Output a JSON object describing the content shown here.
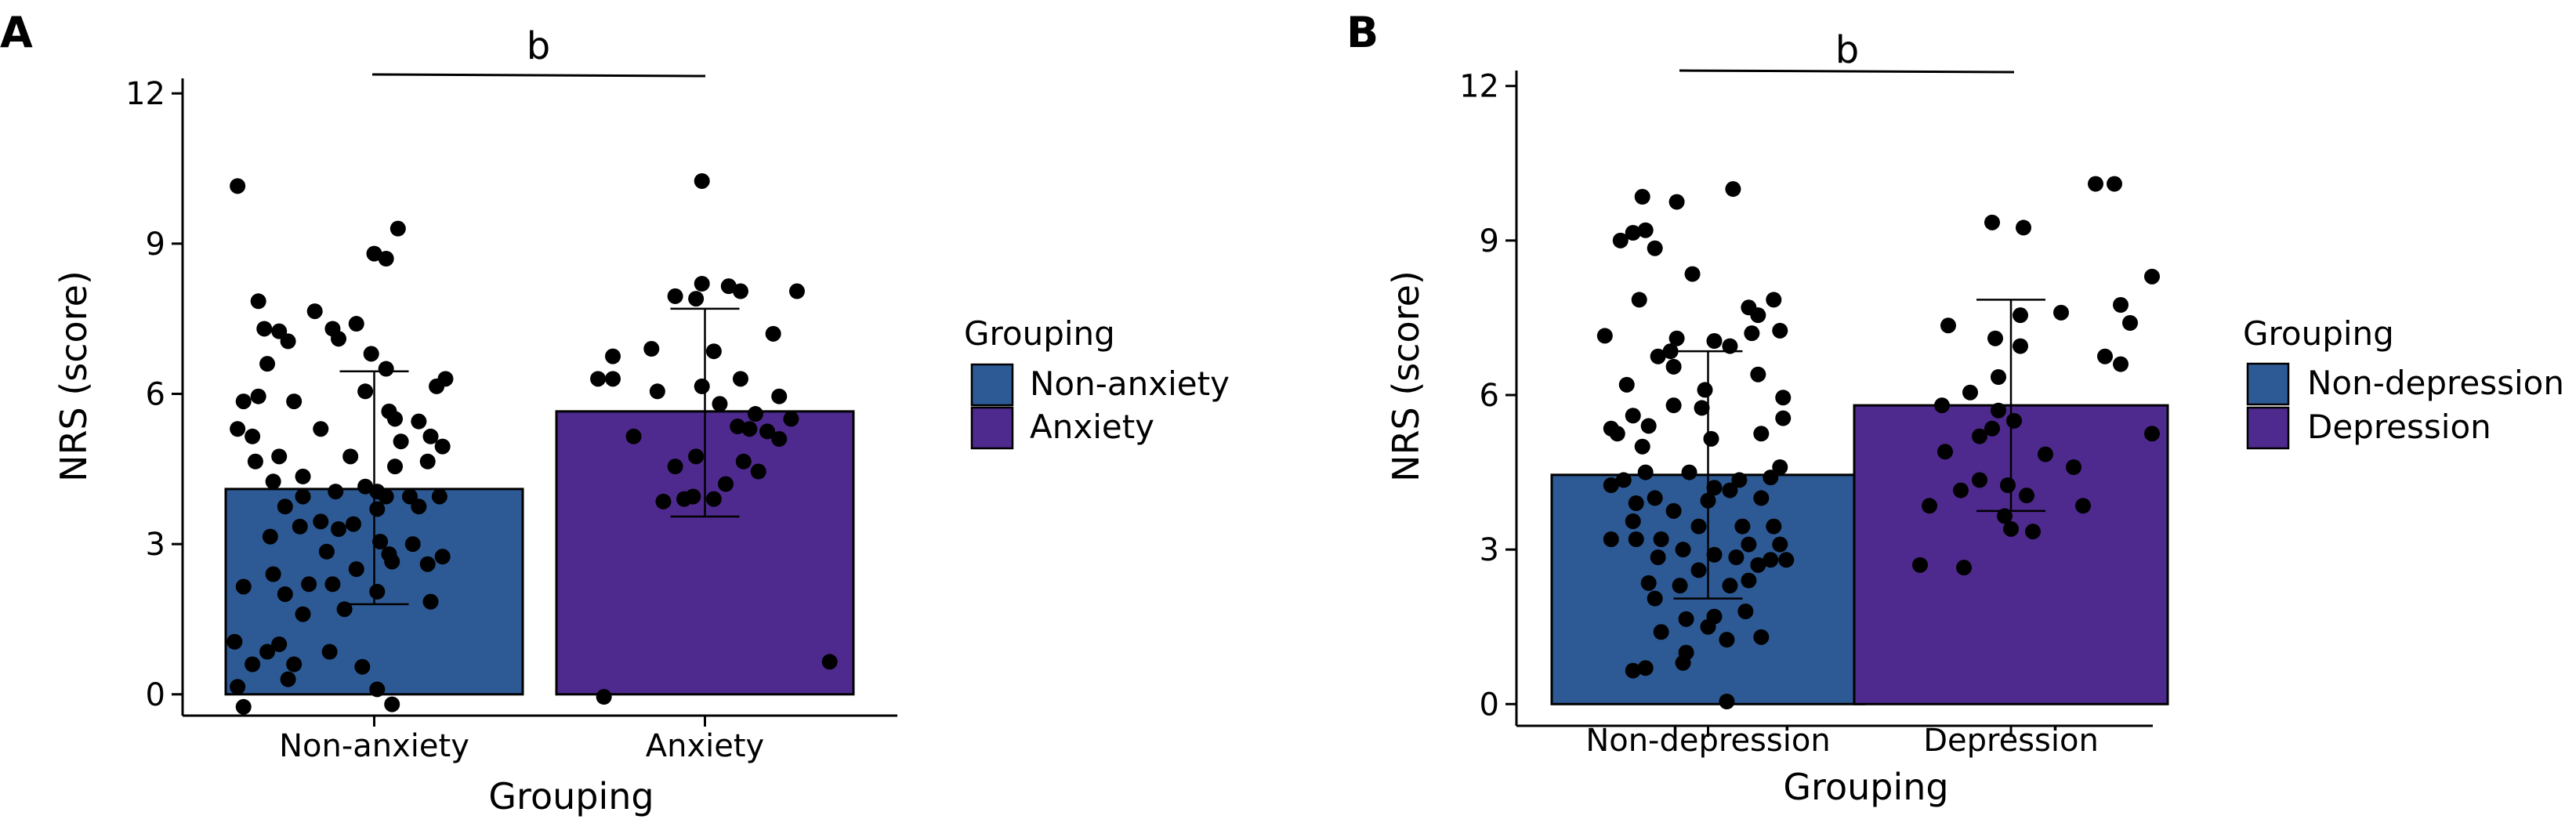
{
  "chart_data": [
    {
      "panel": "A",
      "type": "bar",
      "categories": [
        "Non-anxiety",
        "Anxiety"
      ],
      "values": [
        4.1,
        5.65
      ],
      "error": [
        [
          1.8,
          6.45
        ],
        [
          3.55,
          7.7
        ]
      ],
      "colors": [
        "#2d5a94",
        "#4f2a8e"
      ],
      "xlabel": "Grouping",
      "ylabel": "NRS (score)",
      "ylim": [
        -0.3,
        12.3
      ],
      "yticks": [
        "0",
        "3",
        "6",
        "9",
        "12"
      ],
      "ytick_values": [
        0,
        3,
        6,
        9,
        12
      ],
      "significance": "b",
      "grid": false,
      "legend": {
        "title": "Grouping",
        "placement": "right",
        "entries": [
          "Non-anxiety",
          "Anxiety"
        ]
      },
      "points": [
        [
          [
            0.04,
            10.15
          ],
          [
            0.58,
            9.3
          ],
          [
            0.5,
            8.8
          ],
          [
            0.54,
            8.7
          ],
          [
            0.11,
            7.85
          ],
          [
            0.3,
            7.65
          ],
          [
            0.44,
            7.4
          ],
          [
            0.13,
            7.3
          ],
          [
            0.18,
            7.25
          ],
          [
            0.36,
            7.3
          ],
          [
            0.38,
            7.1
          ],
          [
            0.21,
            7.05
          ],
          [
            0.49,
            6.8
          ],
          [
            0.14,
            6.6
          ],
          [
            0.54,
            6.5
          ],
          [
            0.74,
            6.3
          ],
          [
            0.71,
            6.15
          ],
          [
            0.47,
            6.05
          ],
          [
            0.11,
            5.95
          ],
          [
            0.06,
            5.85
          ],
          [
            0.23,
            5.85
          ],
          [
            0.55,
            5.65
          ],
          [
            0.57,
            5.5
          ],
          [
            0.65,
            5.45
          ],
          [
            0.04,
            5.3
          ],
          [
            0.32,
            5.3
          ],
          [
            0.09,
            5.15
          ],
          [
            0.69,
            5.15
          ],
          [
            0.59,
            5.05
          ],
          [
            0.73,
            4.95
          ],
          [
            0.18,
            4.75
          ],
          [
            0.1,
            4.65
          ],
          [
            0.42,
            4.75
          ],
          [
            0.68,
            4.65
          ],
          [
            0.57,
            4.55
          ],
          [
            0.26,
            4.35
          ],
          [
            0.16,
            4.25
          ],
          [
            0.47,
            4.15
          ],
          [
            0.51,
            4.05
          ],
          [
            0.37,
            4.05
          ],
          [
            0.54,
            3.95
          ],
          [
            0.62,
            3.95
          ],
          [
            0.72,
            3.95
          ],
          [
            0.26,
            3.95
          ],
          [
            0.65,
            3.75
          ],
          [
            0.2,
            3.75
          ],
          [
            0.51,
            3.7
          ],
          [
            0.32,
            3.45
          ],
          [
            0.43,
            3.4
          ],
          [
            0.25,
            3.35
          ],
          [
            0.38,
            3.3
          ],
          [
            0.15,
            3.15
          ],
          [
            0.52,
            3.05
          ],
          [
            0.63,
            3.0
          ],
          [
            0.34,
            2.85
          ],
          [
            0.55,
            2.8
          ],
          [
            0.73,
            2.75
          ],
          [
            0.56,
            2.65
          ],
          [
            0.68,
            2.6
          ],
          [
            0.44,
            2.5
          ],
          [
            0.16,
            2.4
          ],
          [
            0.28,
            2.2
          ],
          [
            0.36,
            2.2
          ],
          [
            0.06,
            2.15
          ],
          [
            0.51,
            2.05
          ],
          [
            0.2,
            2.0
          ],
          [
            0.69,
            1.85
          ],
          [
            0.4,
            1.7
          ],
          [
            0.26,
            1.6
          ],
          [
            0.03,
            1.05
          ],
          [
            0.18,
            1.0
          ],
          [
            0.14,
            0.85
          ],
          [
            0.35,
            0.85
          ],
          [
            0.09,
            0.6
          ],
          [
            0.23,
            0.6
          ],
          [
            0.46,
            0.55
          ],
          [
            0.21,
            0.3
          ],
          [
            0.04,
            0.15
          ],
          [
            0.51,
            0.1
          ],
          [
            0.56,
            -0.2
          ],
          [
            0.06,
            -0.25
          ]
        ],
        [
          [
            0.49,
            10.25
          ],
          [
            0.49,
            8.2
          ],
          [
            0.58,
            8.15
          ],
          [
            0.62,
            8.05
          ],
          [
            0.4,
            7.95
          ],
          [
            0.47,
            7.9
          ],
          [
            0.81,
            8.05
          ],
          [
            0.73,
            7.2
          ],
          [
            0.32,
            6.9
          ],
          [
            0.53,
            6.85
          ],
          [
            0.19,
            6.75
          ],
          [
            0.14,
            6.3
          ],
          [
            0.19,
            6.3
          ],
          [
            0.62,
            6.3
          ],
          [
            0.49,
            6.15
          ],
          [
            0.34,
            6.05
          ],
          [
            0.75,
            5.95
          ],
          [
            0.55,
            5.8
          ],
          [
            0.67,
            5.6
          ],
          [
            0.79,
            5.5
          ],
          [
            0.61,
            5.35
          ],
          [
            0.65,
            5.3
          ],
          [
            0.71,
            5.25
          ],
          [
            0.75,
            5.1
          ],
          [
            0.26,
            5.15
          ],
          [
            0.47,
            4.75
          ],
          [
            0.63,
            4.65
          ],
          [
            0.4,
            4.55
          ],
          [
            0.68,
            4.45
          ],
          [
            0.57,
            4.2
          ],
          [
            0.46,
            3.95
          ],
          [
            0.43,
            3.9
          ],
          [
            0.53,
            3.9
          ],
          [
            0.36,
            3.85
          ],
          [
            0.92,
            0.65
          ],
          [
            0.16,
            -0.05
          ]
        ]
      ]
    },
    {
      "panel": "B",
      "type": "bar",
      "categories": [
        "Non-depression",
        "Depression"
      ],
      "values": [
        4.45,
        5.8
      ],
      "error": [
        [
          2.05,
          6.85
        ],
        [
          3.75,
          7.85
        ]
      ],
      "colors": [
        "#2d5a94",
        "#4f2a8e"
      ],
      "xlabel": "Grouping",
      "ylabel": "NRS (score)",
      "ylim": [
        -0.3,
        12.3
      ],
      "yticks": [
        "0",
        "3",
        "6",
        "9",
        "12"
      ],
      "ytick_values": [
        0,
        3,
        6,
        9,
        12
      ],
      "significance": "b",
      "grid": false,
      "legend": {
        "title": "Grouping",
        "placement": "right",
        "entries": [
          "Non-depression",
          "Depression"
        ]
      },
      "points": [
        [
          [
            0.58,
            10.0
          ],
          [
            0.29,
            9.85
          ],
          [
            0.4,
            9.75
          ],
          [
            0.3,
            9.2
          ],
          [
            0.26,
            9.15
          ],
          [
            0.22,
            9.0
          ],
          [
            0.33,
            8.85
          ],
          [
            0.45,
            8.35
          ],
          [
            0.71,
            7.85
          ],
          [
            0.63,
            7.7
          ],
          [
            0.28,
            7.85
          ],
          [
            0.66,
            7.55
          ],
          [
            0.73,
            7.25
          ],
          [
            0.64,
            7.2
          ],
          [
            0.17,
            7.15
          ],
          [
            0.4,
            7.1
          ],
          [
            0.52,
            7.05
          ],
          [
            0.57,
            6.95
          ],
          [
            0.38,
            6.85
          ],
          [
            0.34,
            6.75
          ],
          [
            0.39,
            6.55
          ],
          [
            0.66,
            6.4
          ],
          [
            0.24,
            6.2
          ],
          [
            0.49,
            6.1
          ],
          [
            0.74,
            5.95
          ],
          [
            0.39,
            5.8
          ],
          [
            0.48,
            5.75
          ],
          [
            0.26,
            5.6
          ],
          [
            0.74,
            5.55
          ],
          [
            0.31,
            5.4
          ],
          [
            0.19,
            5.35
          ],
          [
            0.21,
            5.25
          ],
          [
            0.67,
            5.25
          ],
          [
            0.51,
            5.15
          ],
          [
            0.29,
            5.0
          ],
          [
            0.73,
            4.6
          ],
          [
            0.3,
            4.5
          ],
          [
            0.44,
            4.5
          ],
          [
            0.23,
            4.35
          ],
          [
            0.6,
            4.35
          ],
          [
            0.7,
            4.4
          ],
          [
            0.19,
            4.25
          ],
          [
            0.52,
            4.2
          ],
          [
            0.57,
            4.15
          ],
          [
            0.33,
            4.0
          ],
          [
            0.67,
            4.0
          ],
          [
            0.27,
            3.9
          ],
          [
            0.5,
            3.95
          ],
          [
            0.39,
            3.75
          ],
          [
            0.26,
            3.55
          ],
          [
            0.47,
            3.45
          ],
          [
            0.61,
            3.45
          ],
          [
            0.71,
            3.45
          ],
          [
            0.35,
            3.2
          ],
          [
            0.19,
            3.2
          ],
          [
            0.27,
            3.2
          ],
          [
            0.73,
            3.1
          ],
          [
            0.63,
            3.1
          ],
          [
            0.42,
            3.0
          ],
          [
            0.52,
            2.9
          ],
          [
            0.34,
            2.85
          ],
          [
            0.59,
            2.85
          ],
          [
            0.7,
            2.8
          ],
          [
            0.75,
            2.8
          ],
          [
            0.66,
            2.7
          ],
          [
            0.47,
            2.6
          ],
          [
            0.63,
            2.4
          ],
          [
            0.31,
            2.35
          ],
          [
            0.41,
            2.3
          ],
          [
            0.57,
            2.3
          ],
          [
            0.33,
            2.05
          ],
          [
            0.62,
            1.8
          ],
          [
            0.52,
            1.7
          ],
          [
            0.43,
            1.65
          ],
          [
            0.5,
            1.5
          ],
          [
            0.35,
            1.4
          ],
          [
            0.67,
            1.3
          ],
          [
            0.56,
            1.25
          ],
          [
            0.43,
            1.0
          ],
          [
            0.42,
            0.8
          ],
          [
            0.3,
            0.7
          ],
          [
            0.26,
            0.65
          ],
          [
            0.56,
            0.05
          ]
        ],
        [
          [
            0.83,
            10.1
          ],
          [
            0.77,
            10.1
          ],
          [
            0.44,
            9.35
          ],
          [
            0.54,
            9.25
          ],
          [
            0.95,
            8.3
          ],
          [
            0.85,
            7.75
          ],
          [
            0.66,
            7.6
          ],
          [
            0.53,
            7.55
          ],
          [
            0.88,
            7.4
          ],
          [
            0.3,
            7.35
          ],
          [
            0.45,
            7.1
          ],
          [
            0.53,
            6.95
          ],
          [
            0.8,
            6.75
          ],
          [
            0.85,
            6.6
          ],
          [
            0.46,
            6.35
          ],
          [
            0.37,
            6.05
          ],
          [
            0.28,
            5.8
          ],
          [
            0.46,
            5.7
          ],
          [
            0.51,
            5.5
          ],
          [
            0.44,
            5.35
          ],
          [
            0.95,
            5.25
          ],
          [
            0.4,
            5.2
          ],
          [
            0.29,
            4.9
          ],
          [
            0.61,
            4.85
          ],
          [
            0.7,
            4.6
          ],
          [
            0.4,
            4.35
          ],
          [
            0.49,
            4.25
          ],
          [
            0.34,
            4.15
          ],
          [
            0.55,
            4.05
          ],
          [
            0.24,
            3.85
          ],
          [
            0.73,
            3.85
          ],
          [
            0.48,
            3.65
          ],
          [
            0.5,
            3.4
          ],
          [
            0.57,
            3.35
          ],
          [
            0.21,
            2.7
          ],
          [
            0.35,
            2.65
          ]
        ]
      ]
    }
  ]
}
